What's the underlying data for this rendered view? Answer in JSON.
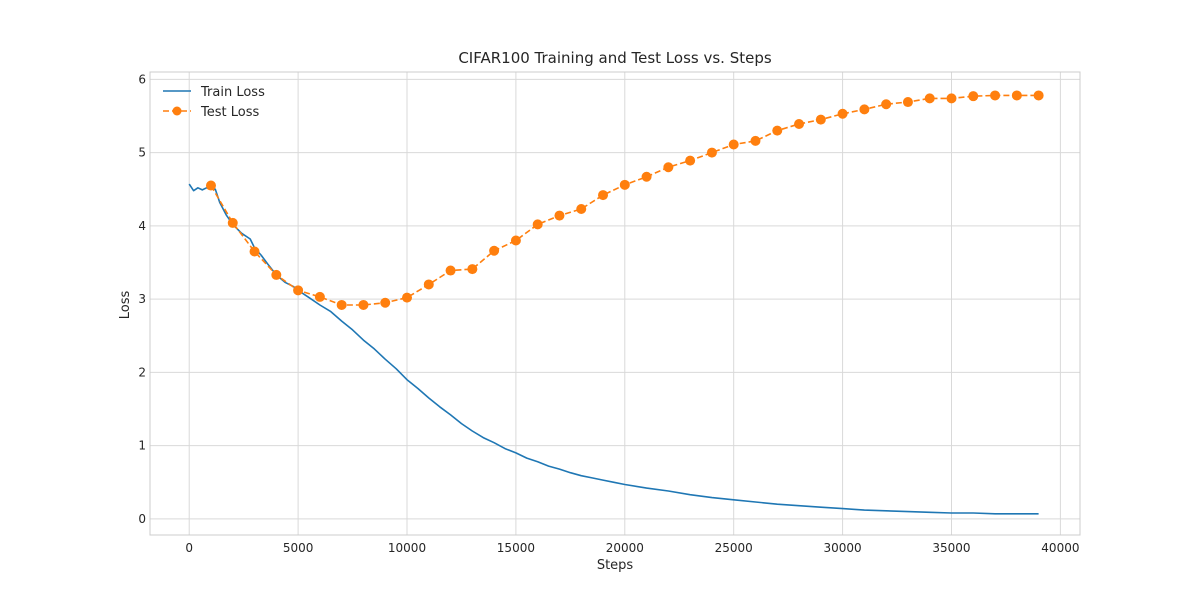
{
  "chart_data": {
    "type": "line",
    "title": "CIFAR100 Training and Test Loss vs. Steps",
    "xlabel": "Steps",
    "ylabel": "Loss",
    "xlim": [
      -1800,
      40900
    ],
    "ylim": [
      -0.22,
      6.1
    ],
    "xticks": [
      0,
      5000,
      10000,
      15000,
      20000,
      25000,
      30000,
      35000,
      40000
    ],
    "xtick_labels": [
      "0",
      "5000",
      "10000",
      "15000",
      "20000",
      "25000",
      "30000",
      "35000",
      "40000"
    ],
    "yticks": [
      0,
      1,
      2,
      3,
      4,
      5,
      6
    ],
    "ytick_labels": [
      "0",
      "1",
      "2",
      "3",
      "4",
      "5",
      "6"
    ],
    "grid": true,
    "legend_position": "top-left",
    "series": [
      {
        "name": "Train Loss",
        "color": "#1f77b4",
        "linestyle": "solid",
        "marker": "none",
        "x": [
          0,
          200,
          400,
          600,
          800,
          1000,
          1200,
          1400,
          1700,
          2000,
          2400,
          2800,
          3000,
          3300,
          3600,
          4000,
          4400,
          4800,
          5000,
          5500,
          6000,
          6500,
          7000,
          7500,
          8000,
          8500,
          9000,
          9500,
          10000,
          10500,
          11000,
          11500,
          12000,
          12500,
          13000,
          13500,
          14000,
          14500,
          15000,
          15500,
          16000,
          16500,
          17000,
          17500,
          18000,
          18500,
          19000,
          19500,
          20000,
          21000,
          22000,
          23000,
          24000,
          25000,
          26000,
          27000,
          28000,
          29000,
          30000,
          31000,
          32000,
          33000,
          34000,
          35000,
          36000,
          37000,
          38000,
          39000
        ],
        "y": [
          4.57,
          4.48,
          4.52,
          4.49,
          4.52,
          4.5,
          4.5,
          4.32,
          4.15,
          4.02,
          3.9,
          3.82,
          3.7,
          3.6,
          3.48,
          3.33,
          3.23,
          3.17,
          3.12,
          3.02,
          2.92,
          2.83,
          2.7,
          2.58,
          2.44,
          2.32,
          2.18,
          2.05,
          1.9,
          1.78,
          1.65,
          1.53,
          1.42,
          1.3,
          1.2,
          1.11,
          1.04,
          0.96,
          0.9,
          0.83,
          0.78,
          0.72,
          0.68,
          0.63,
          0.59,
          0.56,
          0.53,
          0.5,
          0.47,
          0.42,
          0.38,
          0.33,
          0.29,
          0.26,
          0.23,
          0.2,
          0.18,
          0.16,
          0.14,
          0.12,
          0.11,
          0.1,
          0.09,
          0.08,
          0.08,
          0.07,
          0.07,
          0.07
        ]
      },
      {
        "name": "Test Loss",
        "color": "#ff7f0e",
        "linestyle": "dashed",
        "marker": "circle",
        "x": [
          1000,
          2000,
          3000,
          4000,
          5000,
          6000,
          7000,
          8000,
          9000,
          10000,
          11000,
          12000,
          13000,
          14000,
          15000,
          16000,
          17000,
          18000,
          19000,
          20000,
          21000,
          22000,
          23000,
          24000,
          25000,
          26000,
          27000,
          28000,
          29000,
          30000,
          31000,
          32000,
          33000,
          34000,
          35000,
          36000,
          37000,
          38000,
          39000
        ],
        "y": [
          4.55,
          4.04,
          3.65,
          3.33,
          3.12,
          3.03,
          2.92,
          2.92,
          2.95,
          3.02,
          3.2,
          3.39,
          3.41,
          3.66,
          3.8,
          4.02,
          4.14,
          4.23,
          4.42,
          4.56,
          4.67,
          4.8,
          4.89,
          5.0,
          5.11,
          5.16,
          5.3,
          5.39,
          5.45,
          5.53,
          5.59,
          5.66,
          5.69,
          5.74,
          5.74,
          5.77,
          5.78,
          5.78,
          5.78
        ]
      }
    ]
  }
}
